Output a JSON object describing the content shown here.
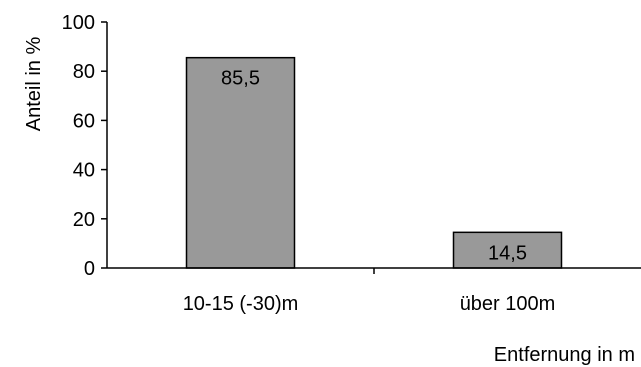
{
  "chart_data": {
    "type": "bar",
    "categories": [
      "10-15 (-30)m",
      "über 100m"
    ],
    "values": [
      85.5,
      14.5
    ],
    "value_labels": [
      "85,5",
      "14,5"
    ],
    "title": "",
    "xlabel": "Entfernung in m",
    "ylabel": "Anteil in %",
    "ylim": [
      0,
      100
    ],
    "yticks": [
      0,
      20,
      40,
      60,
      80,
      100
    ],
    "ytick_labels": [
      "0",
      "20",
      "40",
      "60",
      "80",
      "100"
    ],
    "grid": false,
    "legend": "none",
    "bar_color": "#999999",
    "bar_edge_color": "#000000"
  }
}
